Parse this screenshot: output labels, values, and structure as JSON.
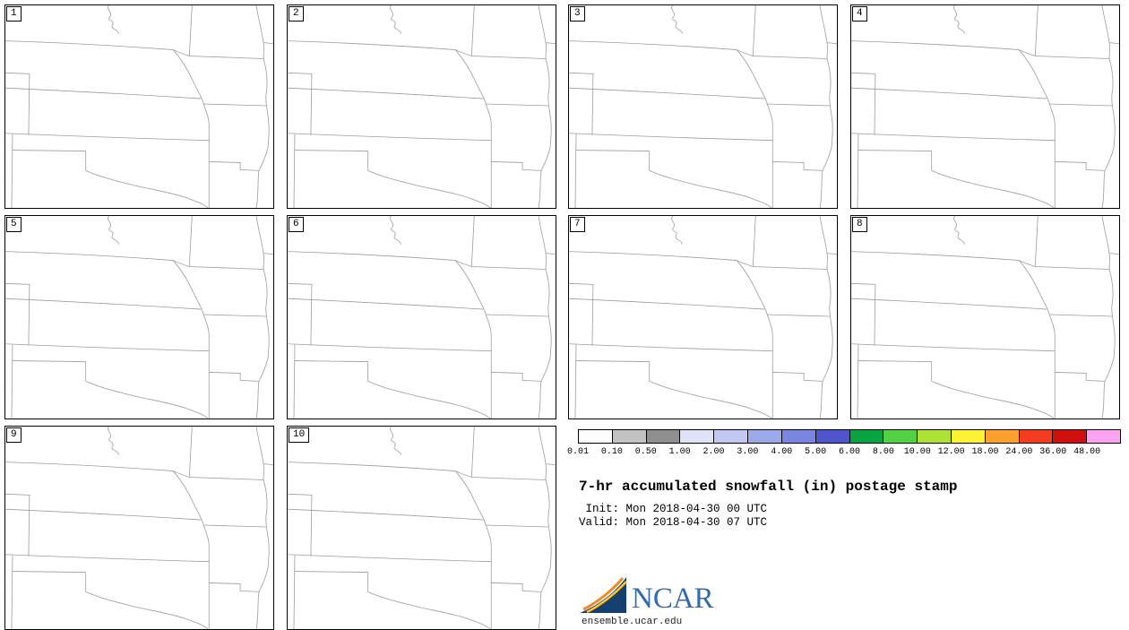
{
  "panels": [
    {
      "label": "1"
    },
    {
      "label": "2"
    },
    {
      "label": "3"
    },
    {
      "label": "4"
    },
    {
      "label": "5"
    },
    {
      "label": "6"
    },
    {
      "label": "7"
    },
    {
      "label": "8"
    },
    {
      "label": "9"
    },
    {
      "label": "10"
    }
  ],
  "map": {
    "line_color": "#9b9b9b",
    "frame_color": "#000000"
  },
  "colorbar": {
    "boundary_labels": [
      "0.01",
      "0.10",
      "0.50",
      "1.00",
      "2.00",
      "3.00",
      "4.00",
      "5.00",
      "6.00",
      "8.00",
      "10.00",
      "12.00",
      "18.00",
      "24.00",
      "36.00",
      "48.00"
    ],
    "cell_colors": [
      "#fdfdfd",
      "#c2c2c2",
      "#8f8f8f",
      "#e0e2f7",
      "#c2c8f1",
      "#9daaea",
      "#7886e0",
      "#4f55cf",
      "#0aa341",
      "#52d147",
      "#aee135",
      "#fdf335",
      "#ffa02e",
      "#f53c20",
      "#d00f0f",
      "#ffa3f0"
    ]
  },
  "caption": {
    "title": "7-hr accumulated snowfall (in) postage stamp",
    "init_line": " Init: Mon 2018-04-30 00 UTC",
    "valid_line": "Valid: Mon 2018-04-30 07 UTC"
  },
  "branding": {
    "logo_text": "NCAR",
    "site_url": "ensemble.ucar.edu",
    "logo_mark_color": "#16406f",
    "logo_arc_color_1": "#f08a24",
    "logo_arc_color_2": "#ffc62d",
    "logo_text_color": "#2f6bb0"
  }
}
